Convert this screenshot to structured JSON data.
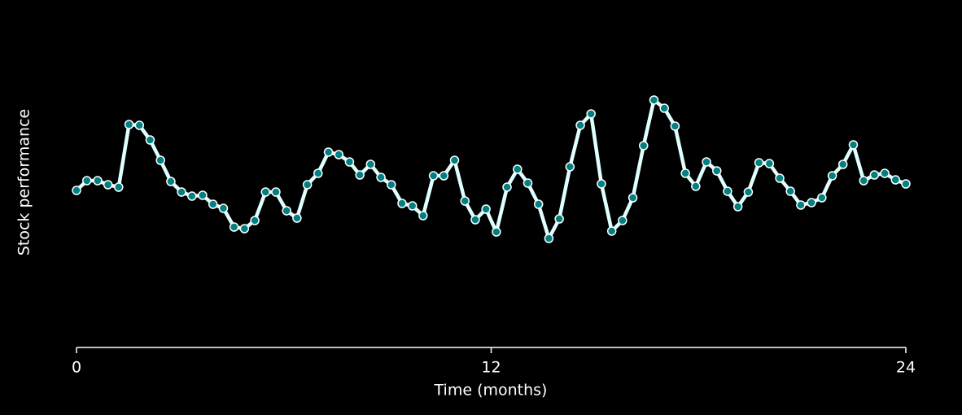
{
  "chart_data": {
    "type": "line",
    "xlabel": "Time (months)",
    "ylabel": "Stock performance",
    "x": [
      0,
      0.3,
      0.61,
      0.91,
      1.22,
      1.52,
      1.82,
      2.13,
      2.43,
      2.73,
      3.04,
      3.34,
      3.65,
      3.95,
      4.25,
      4.56,
      4.86,
      5.16,
      5.47,
      5.77,
      6.08,
      6.38,
      6.68,
      6.99,
      7.29,
      7.59,
      7.9,
      8.2,
      8.51,
      8.81,
      9.11,
      9.42,
      9.72,
      10.03,
      10.33,
      10.63,
      10.94,
      11.24,
      11.54,
      11.85,
      12.15,
      12.46,
      12.76,
      13.06,
      13.37,
      13.67,
      13.97,
      14.28,
      14.58,
      14.89,
      15.19,
      15.49,
      15.8,
      16.1,
      16.41,
      16.71,
      17.01,
      17.32,
      17.62,
      17.92,
      18.23,
      18.53,
      18.84,
      19.14,
      19.44,
      19.75,
      20.05,
      20.35,
      20.66,
      20.96,
      21.27,
      21.57,
      21.87,
      22.18,
      22.48,
      22.78,
      23.09,
      23.39,
      23.7,
      24
    ],
    "values": [
      193,
      205,
      205,
      200,
      197,
      274,
      273,
      255,
      230,
      204,
      191,
      186,
      187,
      176,
      171,
      148,
      146,
      156,
      191,
      191,
      168,
      159,
      200,
      214,
      240,
      237,
      228,
      212,
      225,
      209,
      200,
      177,
      174,
      162,
      211,
      211,
      230,
      180,
      157,
      170,
      142,
      197,
      219,
      202,
      176,
      134,
      158,
      222,
      273,
      287,
      201,
      143,
      156,
      184,
      248,
      304,
      294,
      272,
      214,
      198,
      228,
      217,
      192,
      173,
      191,
      227,
      226,
      208,
      192,
      175,
      178,
      184,
      211,
      225,
      249,
      205,
      212,
      214,
      206,
      201
    ],
    "color": "#e0ffff",
    "marker_color": "#008080",
    "xlim": [
      0,
      24
    ],
    "xticks": [
      0,
      12,
      24
    ],
    "ylim": [
      0,
      400
    ]
  }
}
